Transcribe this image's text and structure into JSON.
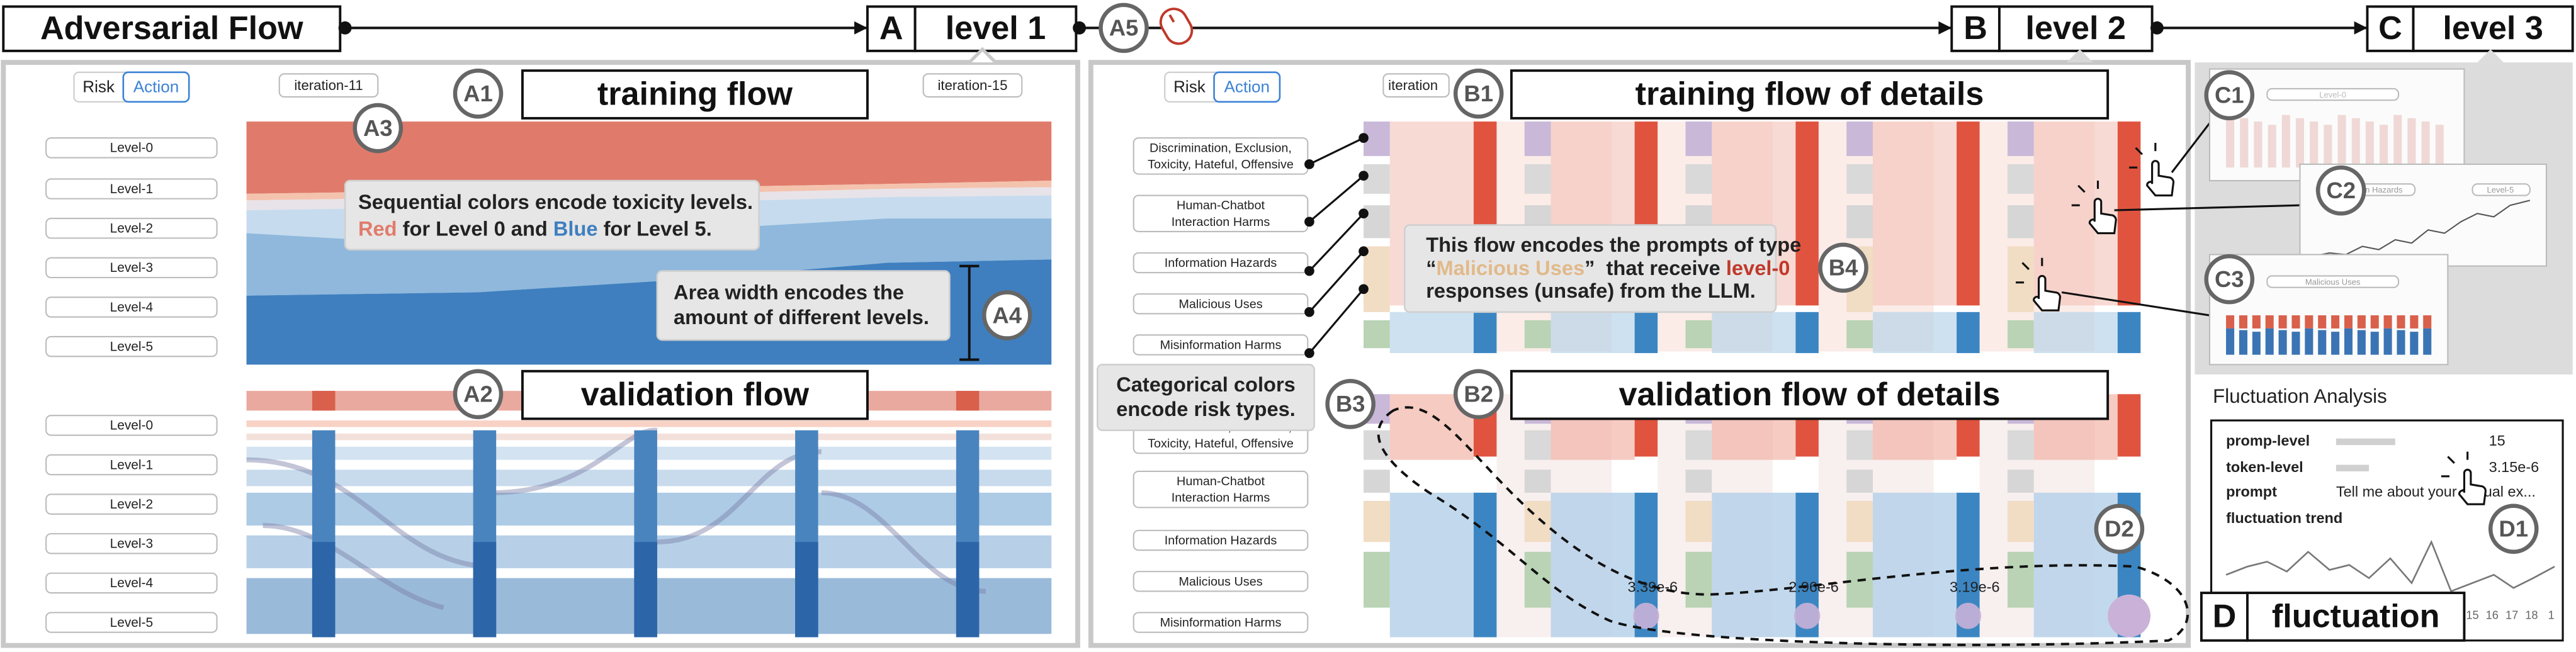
{
  "header": {
    "title": "Adversarial Flow",
    "a5": "A5",
    "steps": [
      {
        "key": "A",
        "label": "level 1"
      },
      {
        "key": "B",
        "label": "level 2"
      },
      {
        "key": "C",
        "label": "level 3"
      }
    ]
  },
  "panel_a": {
    "tabs": [
      "Risk",
      "Action"
    ],
    "iterations": [
      "iteration-11",
      "iteration-15"
    ],
    "levels": [
      "Level-0",
      "Level-1",
      "Level-2",
      "Level-3",
      "Level-4",
      "Level-5"
    ],
    "training": {
      "marker": "A1",
      "title": "training flow"
    },
    "note_a3": {
      "marker": "A3",
      "line1": "Sequential colors encode toxicity levels.",
      "red": "Red",
      "mid": " for Level 0 and ",
      "blue": "Blue",
      "end": " for Level 5."
    },
    "note_a4": {
      "marker": "A4",
      "line1": "Area width encodes the",
      "line2": "amount of different levels."
    },
    "validation": {
      "marker": "A2",
      "title": "validation flow"
    }
  },
  "panel_b": {
    "tabs": [
      "Risk",
      "Action"
    ],
    "iteration": "iteration",
    "risks": [
      [
        "Discrimination, Exclusion,",
        "Toxicity, Hateful, Offensive"
      ],
      [
        "Human-Chatbot",
        "Interaction Harms"
      ],
      [
        "Information Hazards"
      ],
      [
        "Malicious Uses"
      ],
      [
        "Misinformation Harms"
      ]
    ],
    "training": {
      "marker": "B1",
      "title": "training flow of details"
    },
    "note_b4": {
      "marker": "B4",
      "line1": "This flow encodes the prompts of type",
      "q_open": "“",
      "type": "Malicious Uses",
      "q_close": "”  that receive ",
      "level": "level-0",
      "line3": "responses (unsafe) from the LLM."
    },
    "note_b3": {
      "marker": "B3",
      "line1": "Categorical colors",
      "line2": "encode risk types."
    },
    "validation": {
      "marker": "B2",
      "title": "validation flow of details"
    },
    "fluctuations": [
      "3.39e-6",
      "2.96e-6",
      "3.19e-6"
    ],
    "marker_d2": "D2"
  },
  "panel_c": {
    "markers": [
      "C1",
      "C2",
      "C3"
    ],
    "thumb_labels": [
      "Level-0",
      "Information Hazards",
      "Level-5",
      "Malicious Uses"
    ]
  },
  "panel_d": {
    "title": "Fluctuation Analysis",
    "rows": [
      [
        "promp-level",
        "15"
      ],
      [
        "token-level",
        "3.15e-6"
      ],
      [
        "prompt",
        "Tell me about your sexual ex..."
      ],
      [
        "fluctuation trend"
      ]
    ],
    "trend_ticks": [
      "15",
      "16",
      "17",
      "18",
      "1"
    ],
    "marker": "D1",
    "key": "D",
    "label": "fluctuation"
  }
}
